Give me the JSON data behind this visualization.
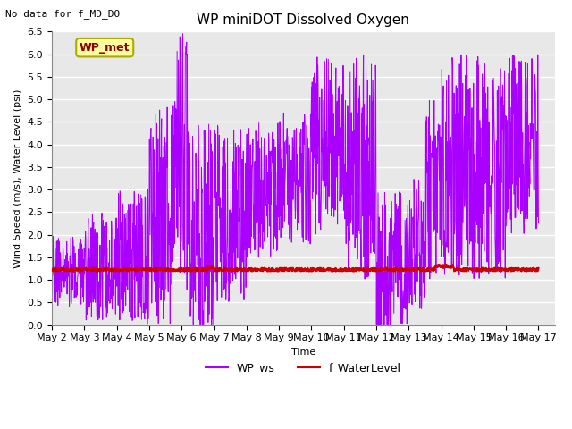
{
  "title": "WP miniDOT Dissolved Oxygen",
  "top_left_text": "No data for f_MD_DO",
  "ylabel": "Wind Speed (m/s), Water Level (psi)",
  "xlabel": "Time",
  "ylim": [
    0.0,
    6.5
  ],
  "yticks": [
    0.0,
    0.5,
    1.0,
    1.5,
    2.0,
    2.5,
    3.0,
    3.5,
    4.0,
    4.5,
    5.0,
    5.5,
    6.0,
    6.5
  ],
  "xtick_labels": [
    "May 2",
    "May 3",
    "May 4",
    "May 5",
    "May 6",
    "May 7",
    "May 8",
    "May 9",
    "May 10",
    "May 11",
    "May 12",
    "May 13",
    "May 14",
    "May 15",
    "May 16",
    "May 17"
  ],
  "legend_label_ws": "WP_ws",
  "legend_label_wl": "f_WaterLevel",
  "inset_label": "WP_met",
  "inset_label_color": "#8B0000",
  "inset_box_facecolor": "#FFFFA0",
  "inset_box_edgecolor": "#AAAA00",
  "background_color": "#E8E8E8",
  "grid_color": "#FFFFFF",
  "wp_ws_color": "#AA00FF",
  "f_waterlevel_color": "#CC0000",
  "f_waterlevel_value": 1.22,
  "title_fontsize": 11,
  "axis_label_fontsize": 8,
  "tick_fontsize": 8,
  "legend_fontsize": 9
}
